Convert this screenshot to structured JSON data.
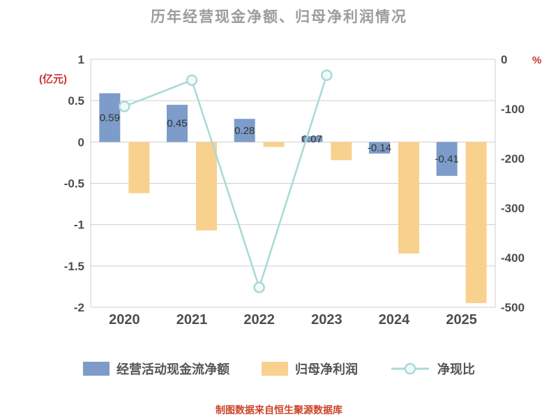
{
  "title": "历年经营现金净额、归母净利润情况",
  "footer": "制图数据来自恒生聚源数据库",
  "axes": {
    "left_label": "(亿元)",
    "right_label": "%",
    "left_ticks": [
      "1",
      "0.5",
      "0",
      "-0.5",
      "-1",
      "-1.5",
      "-2"
    ],
    "right_ticks": [
      "0",
      "-100",
      "-200",
      "-300",
      "-400",
      "-500"
    ]
  },
  "legend": [
    {
      "label": "经营活动现金流净额",
      "type": "bar",
      "color": "#7d9cc9"
    },
    {
      "label": "归母净利润",
      "type": "bar",
      "color": "#f8d18e"
    },
    {
      "label": "净现比",
      "type": "line",
      "color": "#a7dad6"
    }
  ],
  "colors": {
    "title": "#9c9c9c",
    "axis_unit": "#cc3232",
    "tick_text": "#4d4d4d",
    "gridline": "#cfcfcf",
    "bar_label": "#333333",
    "footer": "#cc4528",
    "marker_fill": "#f2faf9"
  },
  "chart_data": {
    "type": "bar",
    "categories": [
      "2020",
      "2021",
      "2022",
      "2023",
      "2024",
      "2025"
    ],
    "series": [
      {
        "name": "经营活动现金流净额",
        "key": "cashflow",
        "type": "bar",
        "axis": "left",
        "color": "#7d9cc9",
        "values": [
          0.59,
          0.45,
          0.28,
          0.07,
          -0.14,
          -0.41
        ],
        "labels": [
          "0.59",
          "0.45",
          "0.28",
          "0.07",
          "-0.14",
          "-0.41"
        ]
      },
      {
        "name": "归母净利润",
        "key": "netprofit",
        "type": "bar",
        "axis": "left",
        "color": "#f8d18e",
        "values": [
          -0.62,
          -1.07,
          -0.06,
          -0.22,
          -1.35,
          -1.95
        ]
      },
      {
        "name": "净现比",
        "key": "ratio",
        "type": "line",
        "axis": "right",
        "color": "#a7dad6",
        "values": [
          -95,
          -42,
          -460,
          -32,
          null,
          null
        ]
      }
    ],
    "left_axis": {
      "label": "(亿元)",
      "min": -2,
      "max": 1
    },
    "right_axis": {
      "label": "%",
      "min": -500,
      "max": 0
    },
    "grid": true,
    "legend_position": "bottom",
    "title": "历年经营现金净额、归母净利润情况"
  }
}
